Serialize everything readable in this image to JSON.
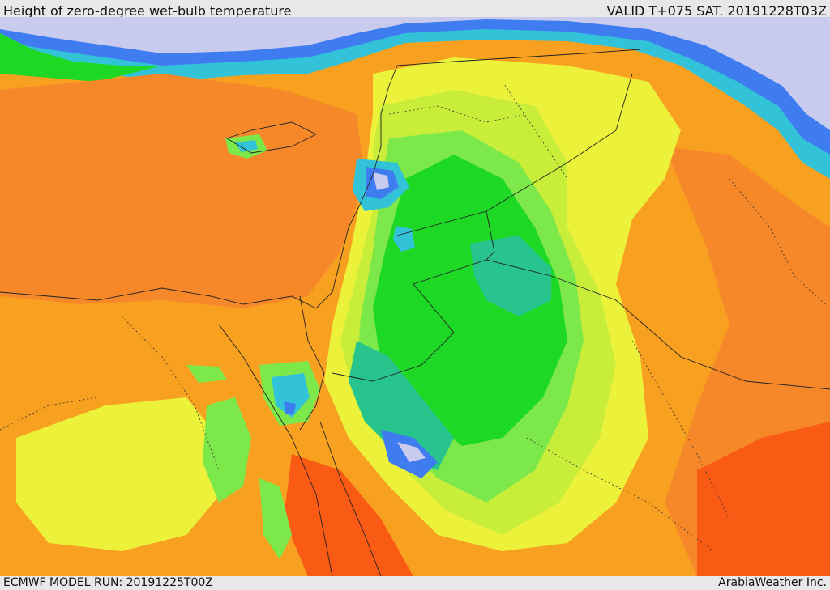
{
  "header": {
    "title": "Height of zero-degree wet-bulb temperature",
    "valid": "VALID T+075 SAT. 20191228T03Z"
  },
  "footer": {
    "model_run": "ECMWF MODEL RUN: 20191225T00Z",
    "credit": "ArabiaWeather Inc."
  },
  "palette": {
    "sea_ice_blue": "#c8caee",
    "blue": "#3f7cf0",
    "cyan": "#33c3d8",
    "teal": "#27c48e",
    "green": "#1ed826",
    "light_green": "#7de84a",
    "yellow_green": "#c8ee3a",
    "yellow": "#ecf23a",
    "light_orange": "#f7b427",
    "orange": "#f8a01f",
    "dark_orange": "#f7882a",
    "red_orange": "#f95a14"
  }
}
